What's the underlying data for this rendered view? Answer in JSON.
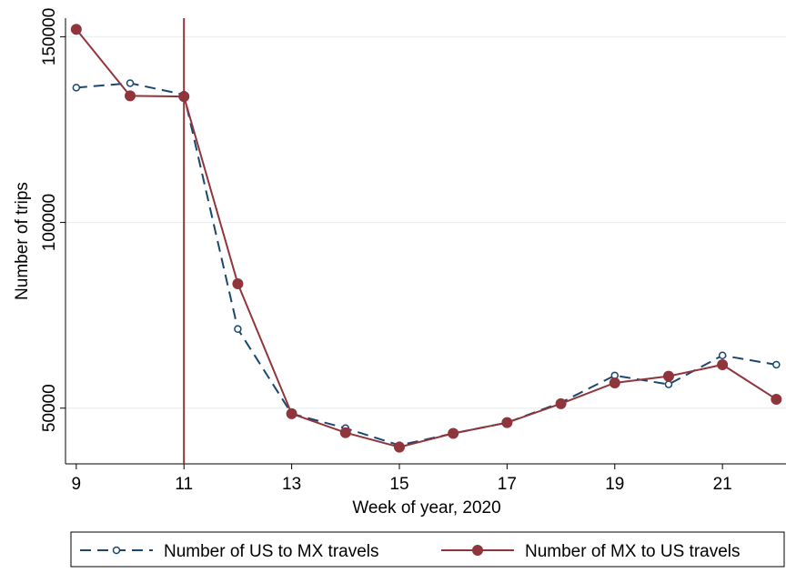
{
  "chart_data": {
    "type": "line",
    "x_label": "Week of year, 2020",
    "y_label": "Number of trips",
    "x": [
      9,
      10,
      11,
      12,
      13,
      14,
      15,
      16,
      17,
      18,
      19,
      20,
      21,
      22
    ],
    "series": [
      {
        "name": "Number of US to MX travels",
        "color": "#1a476f",
        "dashed": true,
        "marker": "hollow",
        "values": [
          136300,
          137500,
          134400,
          71300,
          48500,
          44600,
          40000,
          43200,
          46100,
          51500,
          58800,
          56400,
          64200,
          61700
        ]
      },
      {
        "name": "Number of MX to US travels",
        "color": "#90353b",
        "dashed": false,
        "marker": "filled",
        "values": [
          152000,
          134100,
          133900,
          83500,
          48500,
          43400,
          39500,
          43200,
          46100,
          51200,
          56800,
          58600,
          61700,
          52400
        ]
      }
    ],
    "vline": 11,
    "vline_color": "#90353b",
    "xlim": [
      8.8,
      22.18
    ],
    "xticks": [
      9,
      11,
      13,
      15,
      17,
      19,
      21
    ],
    "ylim": [
      35000,
      155000
    ],
    "yticks": [
      50000,
      100000,
      150000
    ],
    "grid": true
  }
}
